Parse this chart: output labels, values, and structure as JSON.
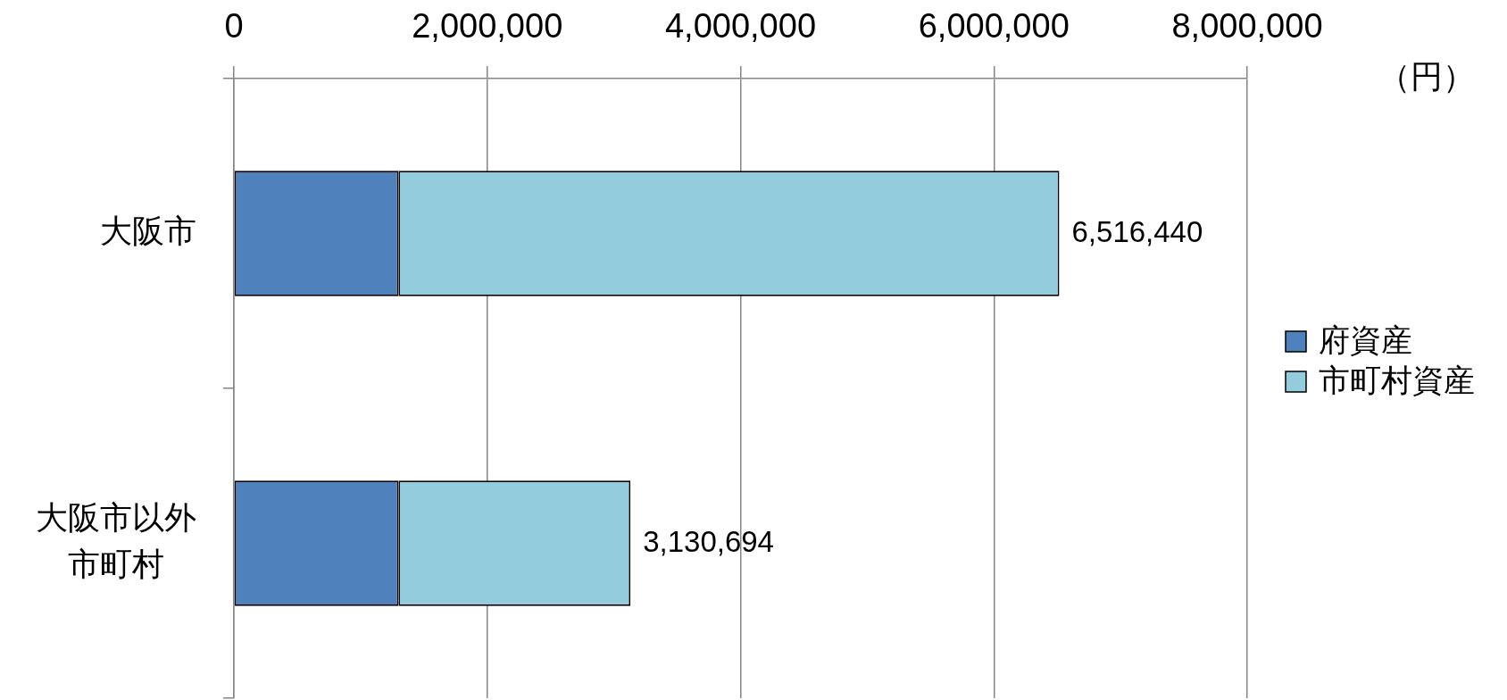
{
  "chart_data": {
    "type": "bar",
    "orientation": "horizontal",
    "stacked": true,
    "categories": [
      "大阪市",
      "大阪市以外市町村"
    ],
    "series": [
      {
        "name": "府資産",
        "color": "#4f81bd",
        "values": [
          1300000,
          1300000
        ]
      },
      {
        "name": "市町村資産",
        "color": "#93cddd",
        "values": [
          5216440,
          1830694
        ]
      }
    ],
    "xlim": [
      0,
      8000000
    ],
    "xticks": [
      0,
      {
        "value": 2000000,
        "label": "2,000,000"
      },
      {
        "value": 4000000,
        "label": "4,000,000"
      },
      {
        "value": 6000000,
        "label": "6,000,000"
      },
      {
        "value": 8000000,
        "label": "8,000,000"
      }
    ],
    "xlabel": "（円）",
    "totals": [
      "6,516,440",
      "3,130,694"
    ],
    "grid": "x",
    "legend": "right"
  }
}
